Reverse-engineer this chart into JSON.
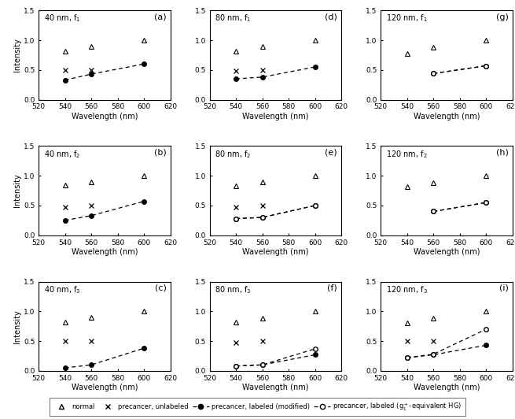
{
  "wavelengths": [
    540,
    560,
    600
  ],
  "titles": [
    [
      "40 nm, f$_1$",
      "80 nm, f$_1$",
      "120 nm, f$_1$"
    ],
    [
      "40 nm, f$_2$",
      "80 nm, f$_2$",
      "120 nm, f$_2$"
    ],
    [
      "40 nm, f$_3$",
      "80 nm, f$_3$",
      "120 nm, f$_3$"
    ]
  ],
  "panel_labels": [
    [
      "(a)",
      "(d)",
      "(g)"
    ],
    [
      "(b)",
      "(e)",
      "(h)"
    ],
    [
      "(c)",
      "(f)",
      "(i)"
    ]
  ],
  "normal": {
    "data": [
      [
        [
          0.82,
          0.9,
          1.0
        ],
        [
          0.82,
          0.9,
          1.0
        ],
        [
          0.78,
          0.88,
          1.0
        ]
      ],
      [
        [
          0.85,
          0.9,
          1.0
        ],
        [
          0.83,
          0.9,
          1.0
        ],
        [
          0.82,
          0.88,
          1.0
        ]
      ],
      [
        [
          0.82,
          0.9,
          1.0
        ],
        [
          0.82,
          0.88,
          1.0
        ],
        [
          0.8,
          0.88,
          1.0
        ]
      ]
    ]
  },
  "precancer_unlabeled": {
    "data": [
      [
        [
          0.5,
          0.5,
          null
        ],
        [
          0.48,
          0.5,
          null
        ],
        [
          null,
          null,
          null
        ]
      ],
      [
        [
          0.47,
          0.5,
          null
        ],
        [
          0.47,
          0.5,
          null
        ],
        [
          null,
          null,
          null
        ]
      ],
      [
        [
          0.5,
          0.5,
          null
        ],
        [
          0.48,
          0.5,
          null
        ],
        [
          0.5,
          0.5,
          null
        ]
      ]
    ]
  },
  "precancer_labeled_modified": {
    "data": [
      [
        [
          0.33,
          0.43,
          0.6
        ],
        [
          0.35,
          0.38,
          0.55
        ],
        [
          null,
          0.44,
          0.57
        ]
      ],
      [
        [
          0.25,
          0.33,
          0.57
        ],
        [
          0.28,
          0.3,
          0.5
        ],
        [
          null,
          0.4,
          0.55
        ]
      ],
      [
        [
          0.05,
          0.1,
          0.38
        ],
        [
          0.08,
          0.1,
          0.27
        ],
        [
          0.22,
          0.27,
          0.43
        ]
      ]
    ]
  },
  "precancer_labeled_hg": {
    "data": [
      [
        [
          null,
          null,
          null
        ],
        [
          null,
          null,
          null
        ],
        [
          null,
          0.44,
          0.57
        ]
      ],
      [
        [
          null,
          null,
          null
        ],
        [
          0.28,
          0.3,
          0.5
        ],
        [
          null,
          0.4,
          0.55
        ]
      ],
      [
        [
          null,
          null,
          null
        ],
        [
          0.08,
          0.1,
          0.37
        ],
        [
          0.22,
          0.28,
          0.7
        ]
      ]
    ]
  },
  "xlim": [
    520,
    620
  ],
  "ylim": [
    0,
    1.5
  ],
  "yticks": [
    0,
    0.5,
    1,
    1.5
  ],
  "xticks": [
    520,
    540,
    560,
    580,
    600,
    620
  ]
}
